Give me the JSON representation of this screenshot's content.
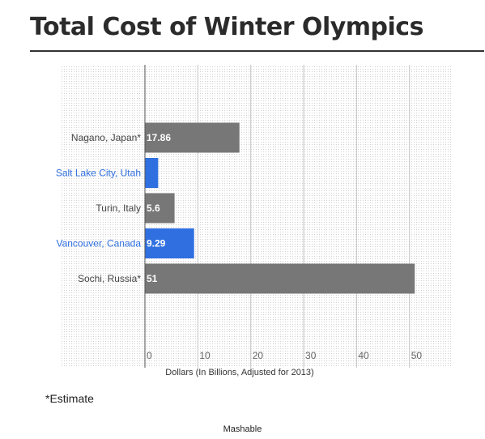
{
  "title": "Total Cost of Winter Olympics",
  "footnote": "*Estimate",
  "source": "Mashable",
  "chart_data": {
    "type": "bar",
    "orientation": "horizontal",
    "categories": [
      "Nagano, Japan*",
      "Salt Lake City, Utah",
      "Turin, Italy",
      "Vancouver, Canada",
      "Sochi, Russia*"
    ],
    "values": [
      17.86,
      2.5,
      5.6,
      9.29,
      51
    ],
    "value_labels": [
      "17.86",
      "",
      "5.6",
      "9.29",
      "51"
    ],
    "colors": [
      "#777777",
      "#2f6fe0",
      "#777777",
      "#2f6fe0",
      "#777777"
    ],
    "label_colors": [
      "#444444",
      "#2f6fe0",
      "#444444",
      "#2f6fe0",
      "#444444"
    ],
    "xlabel": "Dollars (In Billions, Adjusted for 2013)",
    "xticks": [
      0,
      10,
      20,
      30,
      40,
      50
    ],
    "xlim": [
      0,
      58
    ],
    "grid": true
  }
}
